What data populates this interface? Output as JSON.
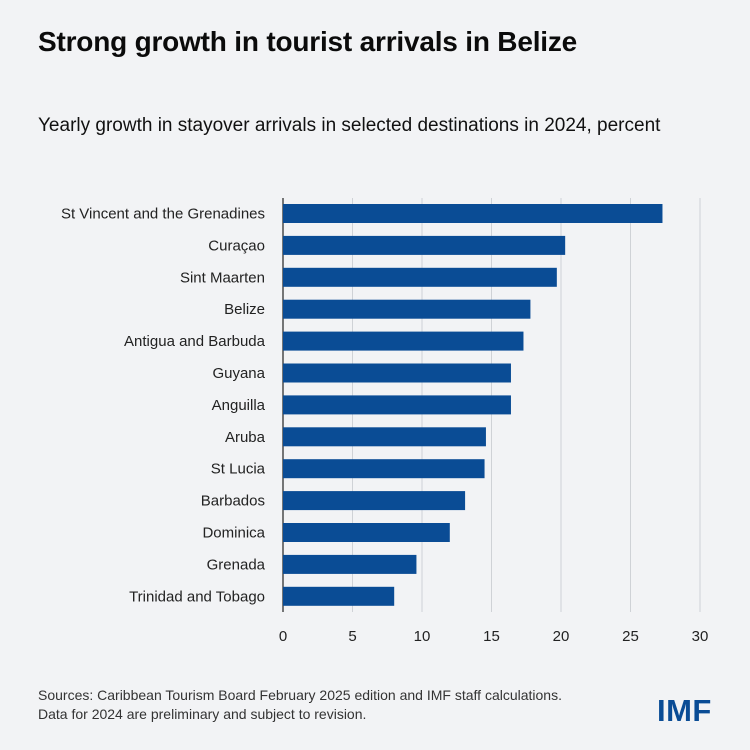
{
  "header": {
    "title": "Strong growth in tourist arrivals in Belize",
    "subtitle": "Yearly growth in stayover arrivals in selected destinations in 2024, percent"
  },
  "chart_data": {
    "type": "bar",
    "orientation": "horizontal",
    "categories": [
      "St Vincent and the Grenadines",
      "Curaçao",
      "Sint Maarten",
      "Belize",
      "Antigua and Barbuda",
      "Guyana",
      "Anguilla",
      "Aruba",
      "St Lucia",
      "Barbados",
      "Dominica",
      "Grenada",
      "Trinidad and Tobago"
    ],
    "values": [
      27.3,
      20.3,
      19.7,
      17.8,
      17.3,
      16.4,
      16.4,
      14.6,
      14.5,
      13.1,
      12.0,
      9.6,
      8.0
    ],
    "xlim": [
      0,
      30
    ],
    "xticks": [
      "0",
      "5",
      "10",
      "15",
      "20",
      "25",
      "30"
    ],
    "grid": "vertical",
    "bar_color": "#0a4c95"
  },
  "footer": {
    "source_line1": "Sources: Caribbean Tourism Board February 2025 edition and IMF staff calculations.",
    "source_line2": "Data for 2024 are preliminary and subject to revision.",
    "logo": "IMF"
  },
  "colors": {
    "bar": "#0a4c95",
    "grid": "#cfd2d6",
    "background": "#f2f3f5"
  }
}
